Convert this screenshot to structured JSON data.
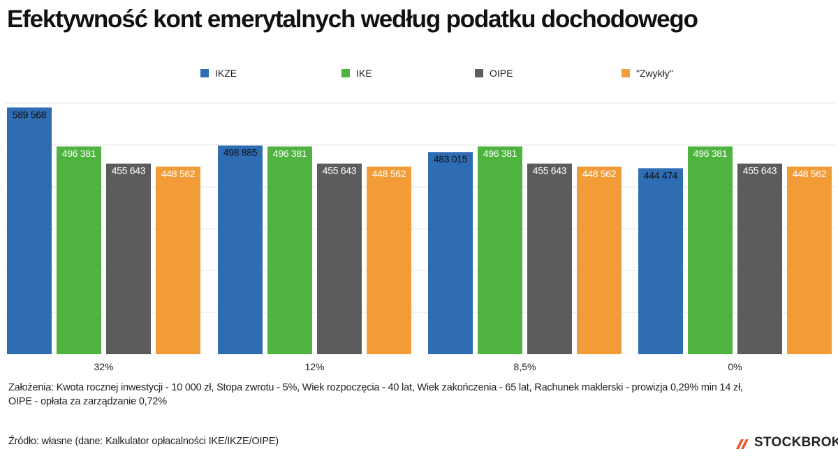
{
  "title": "Efektywność kont emerytalnych według podatku dochodowego",
  "chart_data": {
    "type": "bar",
    "categories": [
      "32%",
      "12%",
      "8,5%",
      "0%"
    ],
    "series": [
      {
        "name": "IKZE",
        "color": "#2e6db4",
        "values": [
          589568,
          498885,
          483015,
          444474
        ],
        "labels": [
          "589 568",
          "498 885",
          "483 015",
          "444 474"
        ]
      },
      {
        "name": "IKE",
        "color": "#4eb33f",
        "values": [
          496381,
          496381,
          496381,
          496381
        ],
        "labels": [
          "496 381",
          "496 381",
          "496 381",
          "496 381"
        ]
      },
      {
        "name": "OIPE",
        "color": "#5c5c5c",
        "values": [
          455643,
          455643,
          455643,
          455643
        ],
        "labels": [
          "455 643",
          "455 643",
          "455 643",
          "455 643"
        ]
      },
      {
        "name": "\"Zwykły\"",
        "color": "#f29c38",
        "values": [
          448562,
          448562,
          448562,
          448562
        ],
        "labels": [
          "448 562",
          "448 562",
          "448 562",
          "448 562"
        ]
      }
    ],
    "ylim": [
      0,
      600000
    ],
    "grid": true,
    "legend_position": "top",
    "xlabel": "",
    "ylabel": ""
  },
  "footnote": {
    "line1": "Założenia: Kwota rocznej inwestycji - 10 000 zł, Stopa zwrotu - 5%, Wiek rozpoczęcia - 40 lat, Wiek zakończenia - 65 lat, Rachunek maklerski - prowizja 0,29% min 14 zł,",
    "line2": "OIPE - opłata za zarządzanie 0,72%"
  },
  "source": "Źródło: własne (dane: Kalkulator opłacalności IKE/IKZE/OIPE)",
  "logo": {
    "text": "STOCKBROKER",
    "color": "#e8572a"
  }
}
